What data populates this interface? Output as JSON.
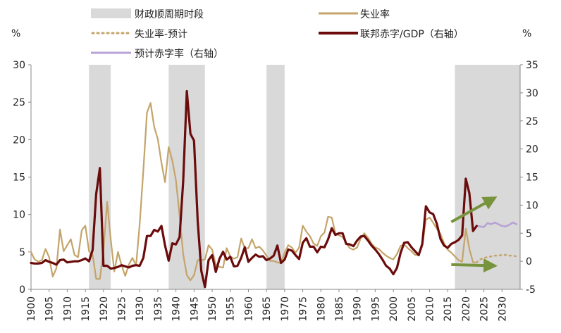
{
  "chart_data": {
    "type": "line",
    "title": "",
    "xlabel": "",
    "ylabel_left": "%",
    "ylabel_right": "%",
    "xlim": [
      1900,
      2035
    ],
    "ylim_left": [
      0,
      30
    ],
    "ylim_right": [
      -5,
      35
    ],
    "left_ticks": [
      "0",
      "5",
      "10",
      "15",
      "20",
      "25",
      "30"
    ],
    "right_ticks": [
      "-5",
      "0",
      "5",
      "10",
      "15",
      "20",
      "25",
      "30",
      "35"
    ],
    "x_ticks": [
      "1900",
      "1905",
      "1910",
      "1915",
      "1920",
      "1925",
      "1930",
      "1935",
      "1940",
      "1945",
      "1950",
      "1955",
      "1960",
      "1965",
      "1970",
      "1975",
      "1980",
      "1985",
      "1990",
      "1995",
      "2000",
      "2005",
      "2010",
      "2015",
      "2020",
      "2025",
      "2030"
    ],
    "legend_position": "top",
    "legend": {
      "fiscal_cycle": "财政顺周期时段",
      "unemployment": "失业率",
      "unemployment_forecast": "失业率-预计",
      "deficit": "联邦赤字/GDP（右轴）",
      "deficit_forecast": "预计赤字率（右轴）"
    },
    "colors": {
      "fiscal_cycle": "#d9d9d9",
      "unemployment": "#c4a46a",
      "deficit": "#6b0b0b",
      "deficit_forecast": "#b7a3d4",
      "arrow": "#77933c"
    },
    "shaded_periods": [
      [
        1916,
        1922
      ],
      [
        1938,
        1948
      ],
      [
        1965,
        1970
      ],
      [
        2017,
        2035
      ]
    ],
    "series": [
      {
        "name": "失业率",
        "axis": "left",
        "x": [
          1900,
          1901,
          1902,
          1903,
          1904,
          1905,
          1906,
          1907,
          1908,
          1909,
          1910,
          1911,
          1912,
          1913,
          1914,
          1915,
          1916,
          1917,
          1918,
          1919,
          1920,
          1921,
          1922,
          1923,
          1924,
          1925,
          1926,
          1927,
          1928,
          1929,
          1930,
          1931,
          1932,
          1933,
          1934,
          1935,
          1936,
          1937,
          1938,
          1939,
          1940,
          1941,
          1942,
          1943,
          1944,
          1945,
          1946,
          1947,
          1948,
          1949,
          1950,
          1951,
          1952,
          1953,
          1954,
          1955,
          1956,
          1957,
          1958,
          1959,
          1960,
          1961,
          1962,
          1963,
          1964,
          1965,
          1966,
          1967,
          1968,
          1969,
          1970,
          1971,
          1972,
          1973,
          1974,
          1975,
          1976,
          1977,
          1978,
          1979,
          1980,
          1981,
          1982,
          1983,
          1984,
          1985,
          1986,
          1987,
          1988,
          1989,
          1990,
          1991,
          1992,
          1993,
          1994,
          1995,
          1996,
          1997,
          1998,
          1999,
          2000,
          2001,
          2002,
          2003,
          2004,
          2005,
          2006,
          2007,
          2008,
          2009,
          2010,
          2011,
          2012,
          2013,
          2014,
          2015,
          2016,
          2017,
          2018,
          2019,
          2020,
          2021,
          2022,
          2023
        ],
        "values": [
          5.0,
          4.0,
          3.7,
          3.9,
          5.4,
          4.3,
          1.7,
          2.8,
          8.0,
          5.1,
          5.9,
          6.7,
          4.6,
          4.3,
          7.9,
          8.5,
          5.1,
          4.6,
          1.4,
          1.4,
          5.2,
          11.7,
          6.7,
          2.4,
          5.0,
          3.2,
          1.8,
          3.3,
          4.2,
          3.2,
          8.7,
          15.9,
          23.6,
          24.9,
          21.7,
          20.1,
          16.9,
          14.3,
          19.0,
          17.2,
          14.6,
          9.9,
          4.7,
          1.9,
          1.2,
          1.9,
          3.9,
          3.9,
          4.0,
          5.9,
          5.3,
          3.3,
          3.0,
          2.9,
          5.5,
          4.4,
          4.1,
          4.3,
          6.8,
          5.5,
          5.5,
          6.7,
          5.5,
          5.7,
          5.2,
          4.5,
          3.8,
          3.8,
          3.6,
          3.5,
          4.9,
          5.9,
          5.6,
          4.9,
          5.6,
          8.5,
          7.7,
          7.1,
          6.1,
          5.8,
          7.1,
          7.6,
          9.7,
          9.6,
          7.5,
          7.2,
          7.0,
          6.2,
          5.5,
          5.3,
          5.6,
          6.8,
          7.5,
          6.9,
          6.1,
          5.6,
          5.4,
          4.9,
          4.5,
          4.2,
          4.0,
          4.7,
          5.8,
          6.0,
          5.5,
          5.1,
          4.6,
          4.6,
          5.8,
          9.3,
          9.6,
          8.9,
          8.1,
          7.4,
          6.2,
          5.3,
          4.9,
          4.4,
          3.9,
          3.7,
          8.1,
          5.4,
          3.6,
          3.6
        ]
      },
      {
        "name": "失业率-预计",
        "axis": "left",
        "x": [
          2023,
          2024,
          2025,
          2026,
          2027,
          2028,
          2029,
          2030,
          2031,
          2032,
          2033,
          2034
        ],
        "values": [
          3.6,
          4.0,
          4.2,
          4.3,
          4.4,
          4.5,
          4.5,
          4.6,
          4.6,
          4.5,
          4.5,
          4.4
        ]
      },
      {
        "name": "联邦赤字/GDP（右轴）",
        "axis": "right",
        "x": [
          1900,
          1901,
          1902,
          1903,
          1904,
          1905,
          1906,
          1907,
          1908,
          1909,
          1910,
          1911,
          1912,
          1913,
          1914,
          1915,
          1916,
          1917,
          1918,
          1919,
          1920,
          1921,
          1922,
          1923,
          1924,
          1925,
          1926,
          1927,
          1928,
          1929,
          1930,
          1931,
          1932,
          1933,
          1934,
          1935,
          1936,
          1937,
          1938,
          1939,
          1940,
          1941,
          1942,
          1943,
          1944,
          1945,
          1946,
          1947,
          1948,
          1949,
          1950,
          1951,
          1952,
          1953,
          1954,
          1955,
          1956,
          1957,
          1958,
          1959,
          1960,
          1961,
          1962,
          1963,
          1964,
          1965,
          1966,
          1967,
          1968,
          1969,
          1970,
          1971,
          1972,
          1973,
          1974,
          1975,
          1976,
          1977,
          1978,
          1979,
          1980,
          1981,
          1982,
          1983,
          1984,
          1985,
          1986,
          1987,
          1988,
          1989,
          1990,
          1991,
          1992,
          1993,
          1994,
          1995,
          1996,
          1997,
          1998,
          1999,
          2000,
          2001,
          2002,
          2003,
          2004,
          2005,
          2006,
          2007,
          2008,
          2009,
          2010,
          2011,
          2012,
          2013,
          2014,
          2015,
          2016,
          2017,
          2018,
          2019,
          2020,
          2021,
          2022,
          2023
        ],
        "values": [
          -0.3,
          -0.4,
          -0.4,
          -0.3,
          0.2,
          -0.1,
          -0.3,
          -0.6,
          0.2,
          0.3,
          -0.2,
          -0.1,
          0.0,
          0.0,
          0.2,
          0.5,
          0.0,
          2.0,
          12.0,
          16.6,
          -0.8,
          -0.8,
          -1.3,
          -1.2,
          -1.0,
          -0.7,
          -0.9,
          -1.1,
          -0.8,
          -0.7,
          -0.8,
          0.6,
          4.5,
          4.5,
          5.6,
          5.3,
          6.3,
          2.8,
          0.1,
          3.2,
          3.0,
          4.3,
          14.2,
          30.3,
          22.7,
          21.5,
          7.2,
          -1.7,
          -4.6,
          0.2,
          1.1,
          -1.9,
          0.4,
          1.7,
          0.3,
          0.8,
          -0.9,
          -0.8,
          0.6,
          2.5,
          -0.1,
          0.6,
          1.2,
          0.8,
          0.9,
          0.2,
          0.5,
          1.0,
          2.8,
          -0.3,
          0.3,
          2.1,
          1.9,
          1.1,
          0.4,
          3.3,
          4.1,
          2.6,
          2.6,
          1.6,
          2.6,
          2.5,
          3.9,
          5.9,
          4.7,
          5.0,
          5.0,
          3.1,
          3.0,
          2.7,
          3.7,
          4.4,
          4.5,
          3.7,
          2.8,
          2.1,
          1.3,
          0.3,
          -0.8,
          -1.3,
          -2.3,
          -1.2,
          1.5,
          3.3,
          3.4,
          2.5,
          1.8,
          1.1,
          3.1,
          9.8,
          8.7,
          8.4,
          6.7,
          4.0,
          2.8,
          2.4,
          3.1,
          3.4,
          3.8,
          4.6,
          14.7,
          12.1,
          5.4,
          6.3
        ]
      },
      {
        "name": "预计赤字率（右轴）",
        "axis": "right",
        "x": [
          2023,
          2024,
          2025,
          2026,
          2027,
          2028,
          2029,
          2030,
          2031,
          2032,
          2033,
          2034
        ],
        "values": [
          6.3,
          6.2,
          6.1,
          6.8,
          6.6,
          6.9,
          6.6,
          6.3,
          6.2,
          6.5,
          6.9,
          6.6
        ]
      }
    ],
    "annotations": [
      {
        "type": "arrow",
        "from": [
          2016,
          7.0
        ],
        "to": [
          2028,
          11.3
        ],
        "axis": "right"
      },
      {
        "type": "arrow",
        "from": [
          2016,
          -0.6
        ],
        "to": [
          2028,
          -0.8
        ],
        "axis": "right"
      }
    ]
  }
}
